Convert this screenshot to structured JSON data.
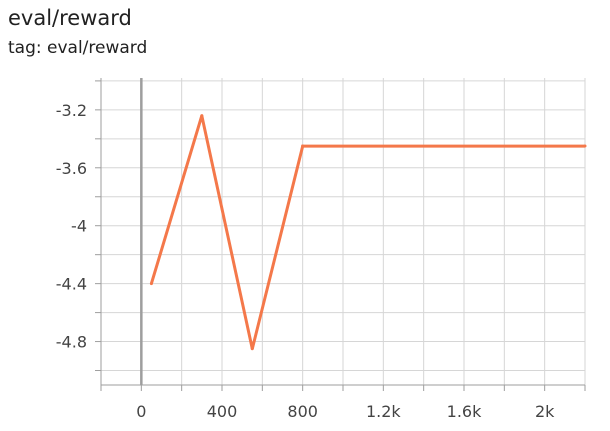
{
  "card": {
    "title": "eval/reward",
    "tag": "tag: eval/reward"
  },
  "colors": {
    "series": "#f4784a",
    "grid": "#d6d6d6",
    "axis": "#9e9e9e",
    "zero_line": "#9e9e9e"
  },
  "chart_data": {
    "type": "line",
    "title": "eval/reward",
    "xlabel": "",
    "ylabel": "",
    "xlim": [
      -200,
      2200
    ],
    "ylim": [
      -5.1,
      -2.98
    ],
    "x_ticks": [
      0,
      400,
      800,
      1200,
      1600,
      2000
    ],
    "x_tick_labels": [
      "0",
      "400",
      "800",
      "1.2k",
      "1.6k",
      "2k"
    ],
    "y_ticks": [
      -4.8,
      -4.4,
      -4.0,
      -3.6,
      -3.2
    ],
    "y_tick_labels": [
      "-4.8",
      "-4.4",
      "-4",
      "-3.6",
      "-3.2"
    ],
    "x_minor_step": 200,
    "y_minor_step": 0.2,
    "grid": true,
    "legend": "none",
    "series": [
      {
        "x": [
          50,
          300,
          550,
          800,
          2200
        ],
        "values": [
          -4.4,
          -3.24,
          -4.85,
          -3.45,
          -3.45
        ]
      }
    ]
  }
}
